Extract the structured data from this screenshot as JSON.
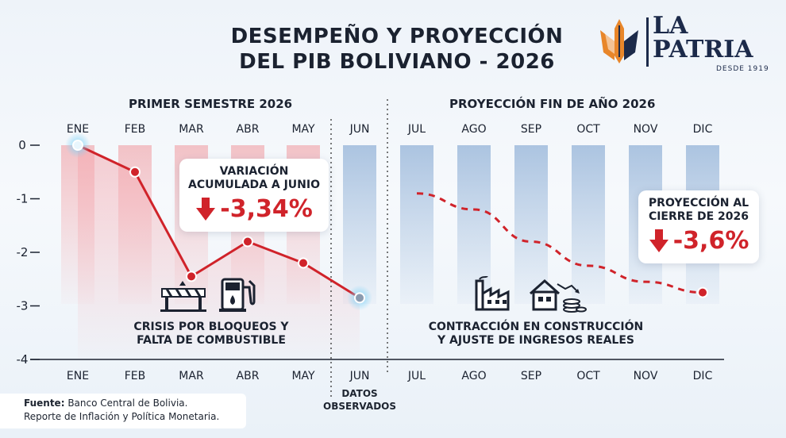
{
  "title_line1": "DESEMPEÑO Y PROYECCIÓN",
  "title_line2": "DEL PIB BOLIVIANO - 2026",
  "logo": {
    "line1": "LA",
    "line2": "PATRIA",
    "sub": "DESDE 1919"
  },
  "section_left": "PRIMER SEMESTRE 2026",
  "section_right": "PROYECCIÓN FIN DE AÑO 2026",
  "callout_left": {
    "line1": "VARIACIÓN",
    "line2": "ACUMULADA A JUNIO",
    "value": "-3,34%"
  },
  "callout_right": {
    "line1": "PROYECCIÓN AL",
    "line2": "CIERRE DE 2026",
    "value": "-3,6%"
  },
  "note_left": {
    "line1": "CRISIS POR BLOQUEOS Y",
    "line2": "FALTA DE COMBUSTIBLE"
  },
  "note_right": {
    "line1": "CONTRACCIÓN EN CONSTRUCCIÓN",
    "line2": "Y AJUSTE DE INGRESOS REALES"
  },
  "observed_label": {
    "line1": "DATOS",
    "line2": "OBSERVADOS"
  },
  "source": {
    "label": "Fuente:",
    "text1": "Banco Central de Bolivia.",
    "text2": "Reporte de Inflación y Política Monetaria."
  },
  "colors": {
    "accent": "#d0232a",
    "bar_observed": "#f2b9bd",
    "bar_projected": "#a9c2de",
    "text": "#1b2230"
  },
  "chart_data": {
    "type": "line",
    "categories": [
      "ENE",
      "FEB",
      "MAR",
      "ABR",
      "MAY",
      "JUN",
      "JUL",
      "AGO",
      "SEP",
      "OCT",
      "NOV",
      "DIC"
    ],
    "yticks": [
      0,
      -1,
      -2,
      -3,
      -4
    ],
    "ylim": [
      -4,
      0
    ],
    "grid": false,
    "series": [
      {
        "values": [
          0,
          -0.5,
          -2.45,
          -1.8,
          -2.2,
          -2.85,
          null,
          null,
          null,
          null,
          null,
          null
        ],
        "style": "solid"
      },
      {
        "values": [
          null,
          null,
          null,
          null,
          null,
          null,
          -0.9,
          -1.2,
          -1.8,
          -2.25,
          -2.55,
          -2.75
        ],
        "style": "dashed"
      }
    ]
  }
}
